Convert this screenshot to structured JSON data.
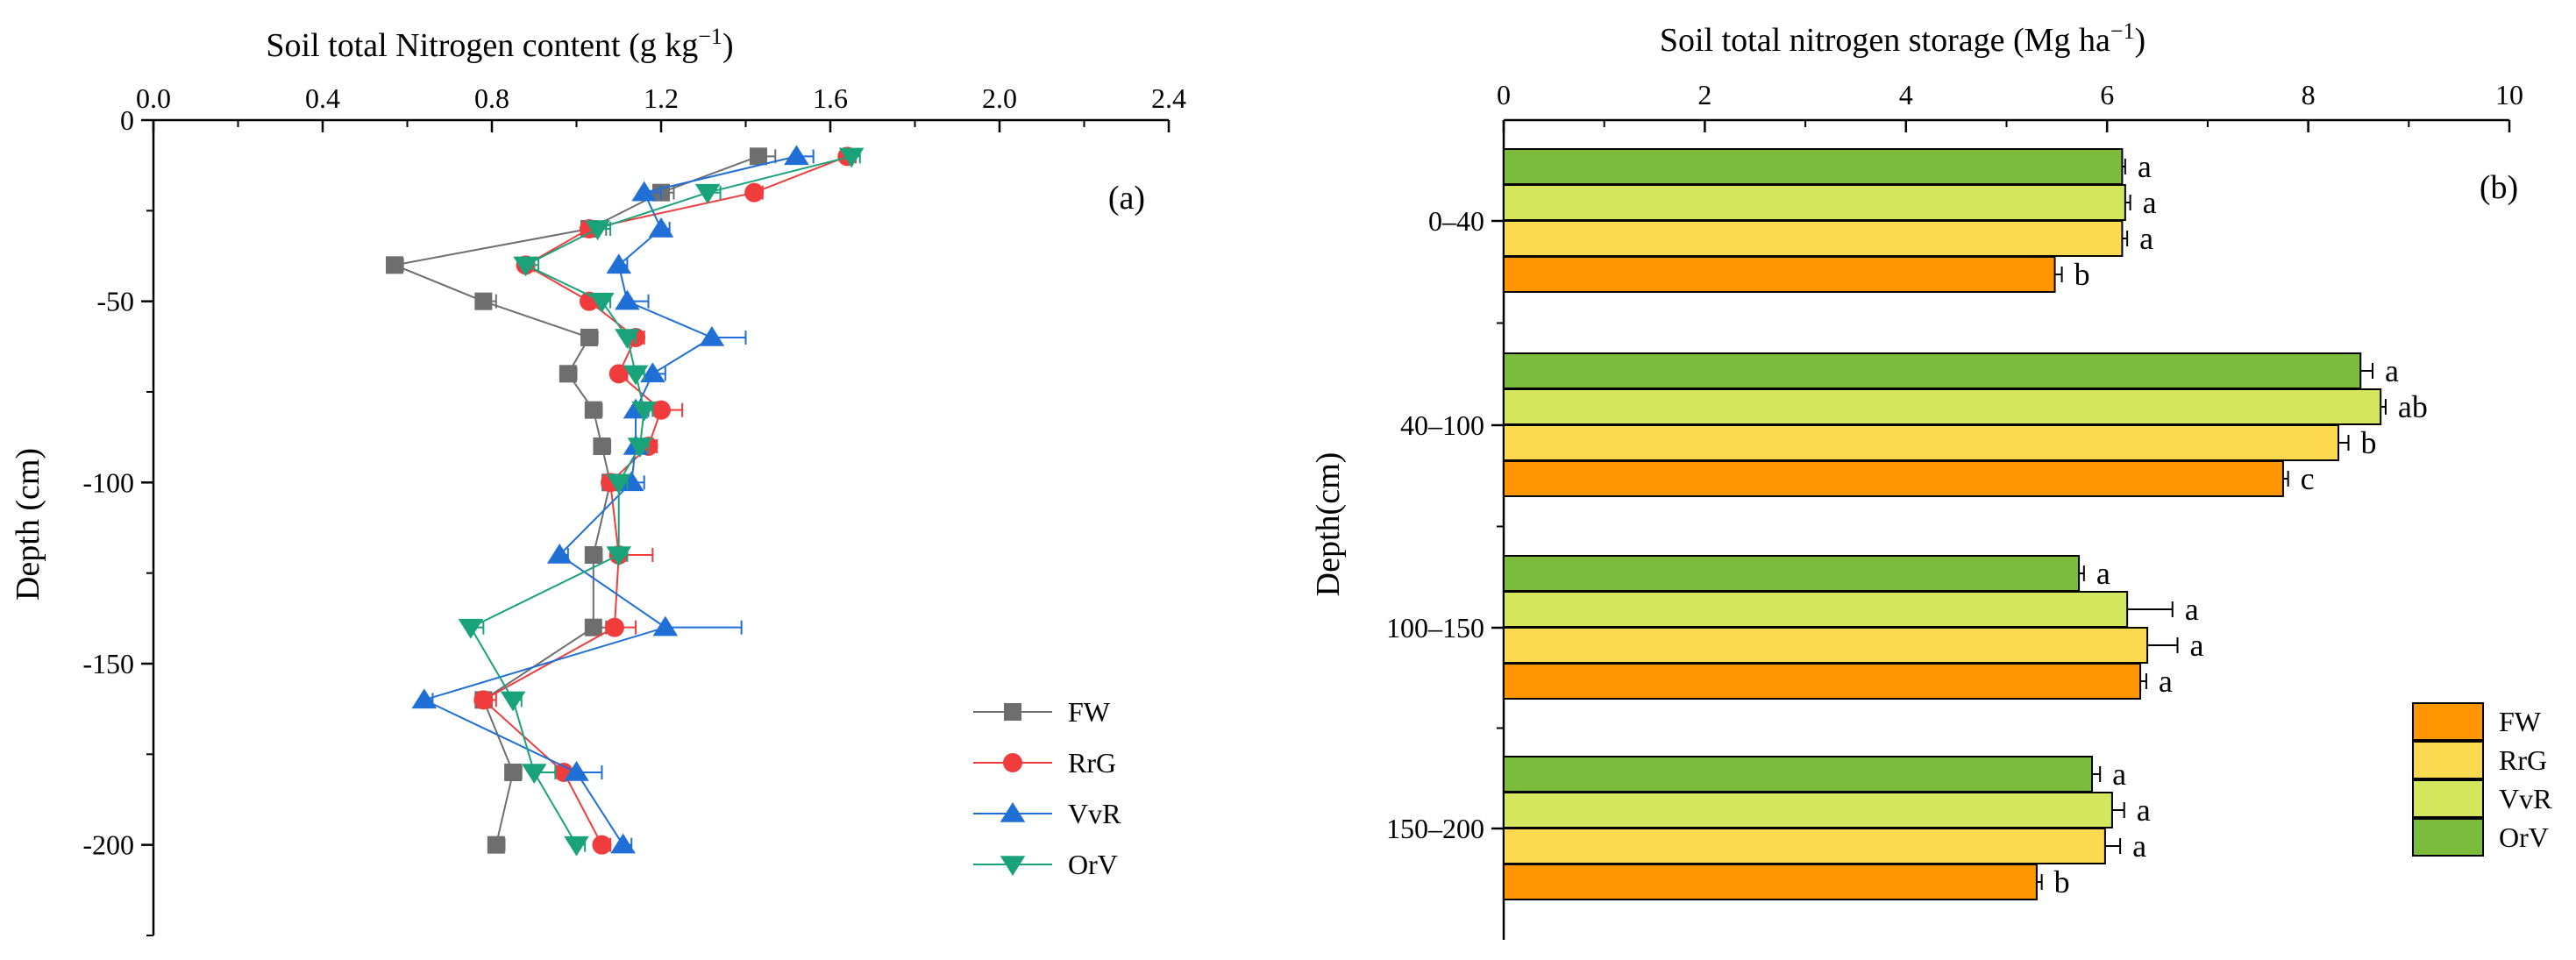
{
  "chart_data": [
    {
      "type": "line",
      "panel_label": "(a)",
      "xlabel": "Soil total Nitrogen content (g kg",
      "xlabel_sup": "−1",
      "xlabel_end": ")",
      "ylabel": "Depth (cm)",
      "x_axis_position": "top",
      "xlim": [
        0,
        2.4
      ],
      "ylim": [
        -225,
        0
      ],
      "xticks": [
        "0.0",
        "0.4",
        "0.8",
        "1.2",
        "1.6",
        "2.0",
        "2.4"
      ],
      "yticks": [
        "0",
        "-50",
        "-100",
        "-150",
        "-200"
      ],
      "depths": [
        -10,
        -20,
        -30,
        -40,
        -50,
        -60,
        -70,
        -80,
        -90,
        -100,
        -120,
        -140,
        -160,
        -180,
        -200
      ],
      "series": [
        {
          "name": "FW",
          "color": "#6e6e6e",
          "marker": "square",
          "values": [
            1.43,
            1.2,
            1.03,
            0.57,
            0.78,
            1.03,
            0.98,
            1.04,
            1.06,
            1.08,
            1.04,
            1.04,
            0.78,
            0.85,
            0.81
          ],
          "errors": [
            0.04,
            0.03,
            0.04,
            0.02,
            0.03,
            0.02,
            0.02,
            0.02,
            0.02,
            0.02,
            0.02,
            0.03,
            0.02,
            0.02,
            0.02
          ]
        },
        {
          "name": "RrG",
          "color": "#f03c3c",
          "marker": "circle",
          "values": [
            1.64,
            1.42,
            1.03,
            0.88,
            1.03,
            1.14,
            1.1,
            1.2,
            1.17,
            1.08,
            1.1,
            1.09,
            0.78,
            0.97,
            1.06
          ],
          "errors": [
            0.02,
            0.02,
            0.02,
            0.02,
            0.02,
            0.02,
            0.02,
            0.05,
            0.02,
            0.02,
            0.08,
            0.05,
            0.03,
            0.03,
            0.02
          ]
        },
        {
          "name": "VvR",
          "color": "#1f6fd6",
          "marker": "triangle-up",
          "values": [
            1.52,
            1.16,
            1.2,
            1.1,
            1.12,
            1.32,
            1.18,
            1.14,
            1.14,
            1.13,
            0.96,
            1.21,
            0.64,
            1.0,
            1.11
          ],
          "errors": [
            0.04,
            0.04,
            0.02,
            0.02,
            0.05,
            0.08,
            0.03,
            0.03,
            0.02,
            0.03,
            0.02,
            0.18,
            0.02,
            0.06,
            0.02
          ]
        },
        {
          "name": "OrV",
          "color": "#1aa37a",
          "marker": "triangle-down",
          "values": [
            1.65,
            1.31,
            1.05,
            0.88,
            1.06,
            1.12,
            1.14,
            1.16,
            1.15,
            1.1,
            1.1,
            0.75,
            0.85,
            0.9,
            1.0
          ],
          "errors": [
            0.02,
            0.03,
            0.03,
            0.03,
            0.02,
            0.02,
            0.02,
            0.02,
            0.02,
            0.02,
            0.02,
            0.03,
            0.02,
            0.05,
            0.02
          ]
        }
      ],
      "legend_position": "bottom-right"
    },
    {
      "type": "bar",
      "orientation": "horizontal",
      "panel_label": "(b)",
      "xlabel": "Soil total nitrogen storage (Mg ha",
      "xlabel_sup": "−1",
      "xlabel_end": ")",
      "ylabel": "Depth(cm)",
      "x_axis_position": "top",
      "xlim": [
        0,
        10
      ],
      "xticks": [
        "0",
        "2",
        "4",
        "6",
        "8",
        "10"
      ],
      "categories": [
        "0–40",
        "40–100",
        "100–150",
        "150–200"
      ],
      "series": [
        {
          "name": "OrV",
          "color": "#7cbc3c",
          "values": [
            6.15,
            8.52,
            5.72,
            5.85
          ],
          "errors": [
            0.03,
            0.12,
            0.05,
            0.08
          ],
          "labels": [
            "a",
            "a",
            "a",
            "a"
          ]
        },
        {
          "name": "VvR",
          "color": "#d4e65e",
          "values": [
            6.18,
            8.72,
            6.2,
            6.05
          ],
          "errors": [
            0.05,
            0.05,
            0.45,
            0.12
          ],
          "labels": [
            "a",
            "ab",
            "a",
            "a"
          ]
        },
        {
          "name": "RrG",
          "color": "#fdd94f",
          "values": [
            6.15,
            8.3,
            6.4,
            5.98
          ],
          "errors": [
            0.05,
            0.1,
            0.3,
            0.15
          ],
          "labels": [
            "a",
            "b",
            "a",
            "a"
          ]
        },
        {
          "name": "FW",
          "color": "#ff9500",
          "values": [
            5.48,
            7.75,
            6.33,
            5.3
          ],
          "errors": [
            0.07,
            0.05,
            0.06,
            0.05
          ],
          "labels": [
            "b",
            "c",
            "a",
            "b"
          ]
        }
      ],
      "legend_order": [
        "FW",
        "RrG",
        "VvR",
        "OrV"
      ],
      "legend_position": "bottom-right"
    }
  ]
}
